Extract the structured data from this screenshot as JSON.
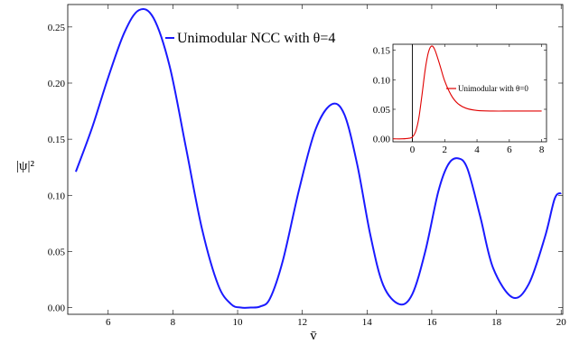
{
  "chart_data": [
    {
      "type": "line",
      "xlabel": "v̄",
      "ylabel": "|ψ|²",
      "xlim": [
        4.75,
        20.05
      ],
      "ylim": [
        -0.006,
        0.27
      ],
      "xticks": [
        6,
        8,
        10,
        12,
        14,
        16,
        18,
        20
      ],
      "yticks": [
        0.0,
        0.05,
        0.1,
        0.15,
        0.2,
        0.25
      ],
      "ytick_labels": [
        "0.00",
        "0.05",
        "0.10",
        "0.15",
        "0.20",
        "0.25"
      ],
      "grid": false,
      "legend": "top-center",
      "series": [
        {
          "name": "Unimodular NCC with θ=4",
          "color": "#1a1aff",
          "x": [
            5.0,
            5.5,
            6.0,
            6.5,
            6.95,
            7.4,
            7.9,
            8.4,
            8.9,
            9.4,
            9.8,
            10.1,
            10.4,
            10.7,
            11.0,
            11.4,
            11.9,
            12.4,
            12.9,
            13.3,
            13.7,
            14.1,
            14.5,
            15.0,
            15.4,
            15.8,
            16.2,
            16.5,
            16.8,
            17.1,
            17.5,
            17.9,
            18.5,
            19.0,
            19.5,
            19.8,
            20.0
          ],
          "y": [
            0.121,
            0.16,
            0.205,
            0.245,
            0.265,
            0.258,
            0.215,
            0.143,
            0.07,
            0.02,
            0.003,
            0.0,
            0.0,
            0.001,
            0.008,
            0.042,
            0.105,
            0.158,
            0.181,
            0.172,
            0.127,
            0.065,
            0.02,
            0.003,
            0.012,
            0.05,
            0.103,
            0.127,
            0.133,
            0.124,
            0.081,
            0.035,
            0.009,
            0.021,
            0.063,
            0.097,
            0.102
          ]
        }
      ]
    },
    {
      "type": "line",
      "inset": true,
      "xlim": [
        -1.2,
        8.3
      ],
      "ylim": [
        -0.005,
        0.16
      ],
      "xticks": [
        0,
        2,
        4,
        6,
        8
      ],
      "yticks": [
        0.0,
        0.05,
        0.1,
        0.15
      ],
      "ytick_labels": [
        "0.00",
        "0.05",
        "0.10",
        "0.15"
      ],
      "legend": "right",
      "vline_x": 0,
      "series": [
        {
          "name": "Unimodular with θ=0",
          "color": "#e00000",
          "x": [
            -1.2,
            -0.6,
            -0.2,
            0.0,
            0.2,
            0.4,
            0.6,
            0.8,
            1.0,
            1.2,
            1.4,
            1.7,
            2.0,
            2.4,
            2.8,
            3.3,
            4.0,
            5.0,
            6.0,
            7.0,
            8.0
          ],
          "y": [
            0.0,
            0.0,
            0.001,
            0.003,
            0.012,
            0.035,
            0.075,
            0.118,
            0.147,
            0.157,
            0.15,
            0.125,
            0.098,
            0.074,
            0.06,
            0.052,
            0.048,
            0.047,
            0.047,
            0.047,
            0.047
          ]
        }
      ]
    }
  ]
}
